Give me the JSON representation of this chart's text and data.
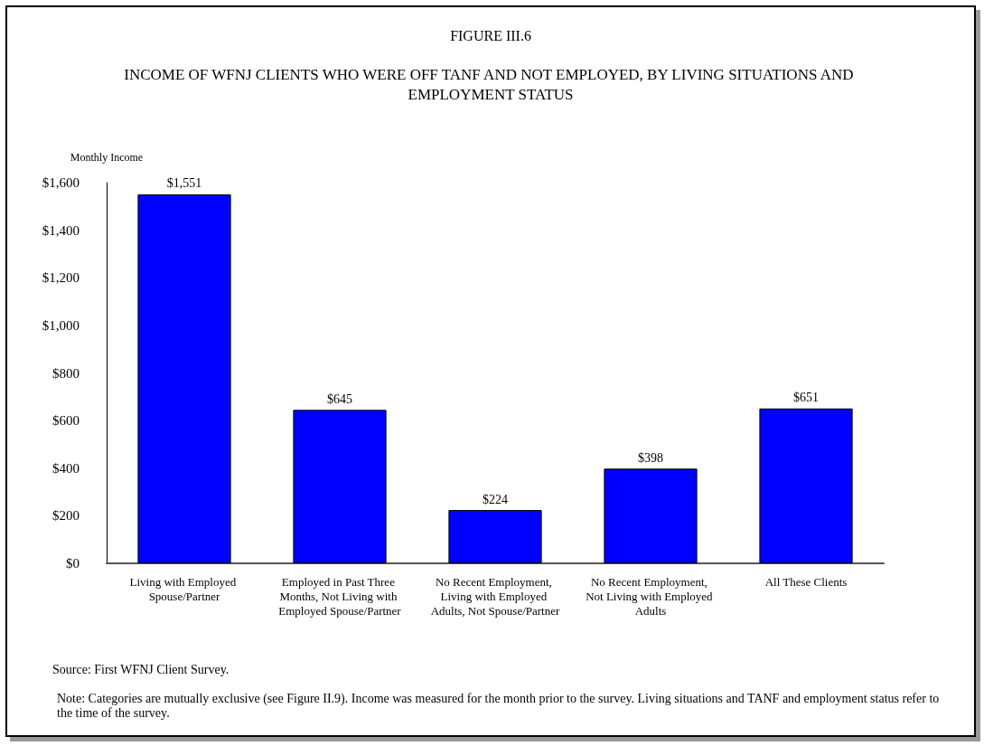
{
  "chart_data": {
    "type": "bar",
    "title": "FIGURE III.6",
    "subtitle": "INCOME OF WFNJ CLIENTS WHO WERE OFF TANF AND NOT EMPLOYED, BY LIVING SITUATIONS AND EMPLOYMENT STATUS",
    "ylabel": "Monthly Income",
    "categories": [
      "Living with Employed Spouse/Partner",
      "Employed in Past Three Months, Not Living with Employed Spouse/Partner",
      "No Recent Employment, Living with Employed Adults, Not Spouse/Partner",
      "No Recent Employment, Not Living with Employed Adults",
      "All These Clients"
    ],
    "values": [
      1551,
      645,
      224,
      398,
      651
    ],
    "value_labels": [
      "$1,551",
      "$645",
      "$224",
      "$398",
      "$651"
    ],
    "color": "#0000ff",
    "ylim": [
      0,
      1600
    ],
    "yticks": [
      {
        "value": 0,
        "label": "$0"
      },
      {
        "value": 200,
        "label": "$200"
      },
      {
        "value": 400,
        "label": "$400"
      },
      {
        "value": 600,
        "label": "$600"
      },
      {
        "value": 800,
        "label": "$800"
      },
      {
        "value": 1000,
        "label": "$1,000"
      },
      {
        "value": 1200,
        "label": "$1,200"
      },
      {
        "value": 1400,
        "label": "$1,400"
      },
      {
        "value": 1600,
        "label": "$1,600"
      }
    ],
    "annotations": [
      "Source:  First WFNJ Client Survey.",
      "Note:  Categories are mutually exclusive (see Figure II.9).  Income was measured for the month prior to the survey.  Living situations and TANF and employment status refer to the time of the survey."
    ]
  }
}
